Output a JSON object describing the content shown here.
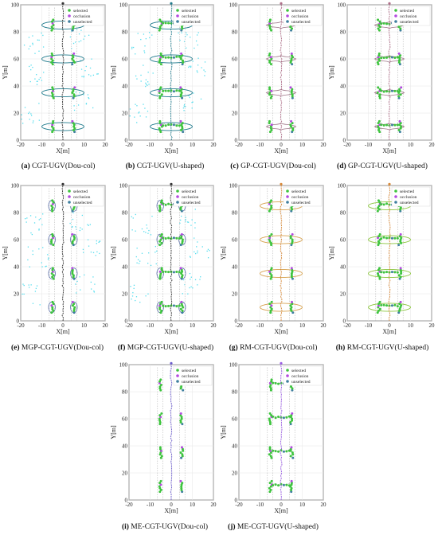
{
  "legend_labels": [
    "selected",
    "occlusion",
    "unselected"
  ],
  "colors": {
    "selected": "#3ec43e",
    "occlusion": "#b44be0",
    "unselected": "#3f7f9f",
    "ellipse_teal": "#1f7a8c",
    "ellipse_mauve": "#a0788a",
    "ellipse_orange": "#d6a14e",
    "ellipse_green": "#8cc63f",
    "ellipse_blue": "#5a6ea8",
    "cyan_noise": "#55ddee",
    "rail_grey": "#b7b7b7"
  },
  "axes": {
    "xlabel": "X[m]",
    "ylabel": "Y[m]",
    "xticks": [
      -20,
      -10,
      0,
      10,
      20
    ],
    "yticks": [
      0,
      20,
      40,
      60,
      80,
      100
    ]
  },
  "chart_data": [
    {
      "id": "a",
      "title": "CGT-UGV(Dou-col)",
      "type": "scatter",
      "layout": "doucol",
      "ring": "ellipse",
      "ellipse_color": "ellipse_teal",
      "path_color": "#333333",
      "noise": true,
      "xlim": [
        -20,
        20
      ],
      "ylim": [
        0,
        100
      ],
      "rows_y": [
        10,
        35,
        60,
        85
      ]
    },
    {
      "id": "b",
      "title": "CGT-UGV(U-shaped)",
      "type": "scatter",
      "layout": "ushaped",
      "ring": "ellipse",
      "ellipse_color": "ellipse_teal",
      "path_color": "#1f7a8c",
      "noise": true,
      "xlim": [
        -20,
        20
      ],
      "ylim": [
        0,
        100
      ],
      "rows_y": [
        10,
        35,
        60,
        85
      ]
    },
    {
      "id": "c",
      "title": "GP-CGT-UGV(Dou-col)",
      "type": "scatter",
      "layout": "doucol",
      "ring": "wave",
      "ellipse_color": "ellipse_mauve",
      "path_color": "#b0708a",
      "noise": false,
      "xlim": [
        -20,
        20
      ],
      "ylim": [
        0,
        100
      ],
      "rows_y": [
        10,
        35,
        60,
        85
      ]
    },
    {
      "id": "d",
      "title": "GP-CGT-UGV(U-shaped)",
      "type": "scatter",
      "layout": "ushaped",
      "ring": "wave",
      "ellipse_color": "ellipse_mauve",
      "path_color": "#b0708a",
      "noise": false,
      "xlim": [
        -20,
        20
      ],
      "ylim": [
        0,
        100
      ],
      "rows_y": [
        10,
        35,
        60,
        85
      ]
    },
    {
      "id": "e",
      "title": "MGP-CGT-UGV(Dou-col)",
      "type": "scatter",
      "layout": "doucol",
      "ring": "side",
      "ellipse_color": "ellipse_blue",
      "path_color": "#333333",
      "noise": true,
      "xlim": [
        -20,
        20
      ],
      "ylim": [
        0,
        100
      ],
      "rows_y": [
        10,
        35,
        60,
        85
      ]
    },
    {
      "id": "f",
      "title": "MGP-CGT-UGV(U-shaped)",
      "type": "scatter",
      "layout": "ushaped",
      "ring": "side",
      "ellipse_color": "ellipse_blue",
      "path_color": "#333333",
      "noise": true,
      "xlim": [
        -20,
        20
      ],
      "ylim": [
        0,
        100
      ],
      "rows_y": [
        10,
        35,
        60,
        85
      ]
    },
    {
      "id": "g",
      "title": "RM-CGT-UGV(Dou-col)",
      "type": "scatter",
      "layout": "doucol",
      "ring": "ellipse",
      "ellipse_color": "ellipse_orange",
      "path_color": "#d98a3a",
      "noise": false,
      "xlim": [
        -20,
        20
      ],
      "ylim": [
        0,
        100
      ],
      "rows_y": [
        10,
        35,
        60,
        85
      ]
    },
    {
      "id": "h",
      "title": "RM-CGT-UGV(U-shaped)",
      "type": "scatter",
      "layout": "ushaped",
      "ring": "ellipse",
      "ellipse_color": "ellipse_green",
      "path_color": "#d98a3a",
      "noise": false,
      "xlim": [
        -20,
        20
      ],
      "ylim": [
        0,
        100
      ],
      "rows_y": [
        10,
        35,
        60,
        85
      ]
    },
    {
      "id": "i",
      "title": "ME-CGT-UGV(Dou-col)",
      "type": "scatter",
      "layout": "doucol",
      "ring": "none",
      "ellipse_color": "ellipse_blue",
      "path_color": "#6a5acd",
      "noise": false,
      "xlim": [
        -20,
        20
      ],
      "ylim": [
        0,
        100
      ],
      "rows_y": [
        10,
        35,
        60,
        85
      ]
    },
    {
      "id": "j",
      "title": "ME-CGT-UGV(U-shaped)",
      "type": "scatter",
      "layout": "ushaped",
      "ring": "none",
      "ellipse_color": "ellipse_blue",
      "path_color": "#9b5de5",
      "noise": false,
      "xlim": [
        -20,
        20
      ],
      "ylim": [
        0,
        100
      ],
      "rows_y": [
        10,
        35,
        60,
        85
      ]
    }
  ]
}
